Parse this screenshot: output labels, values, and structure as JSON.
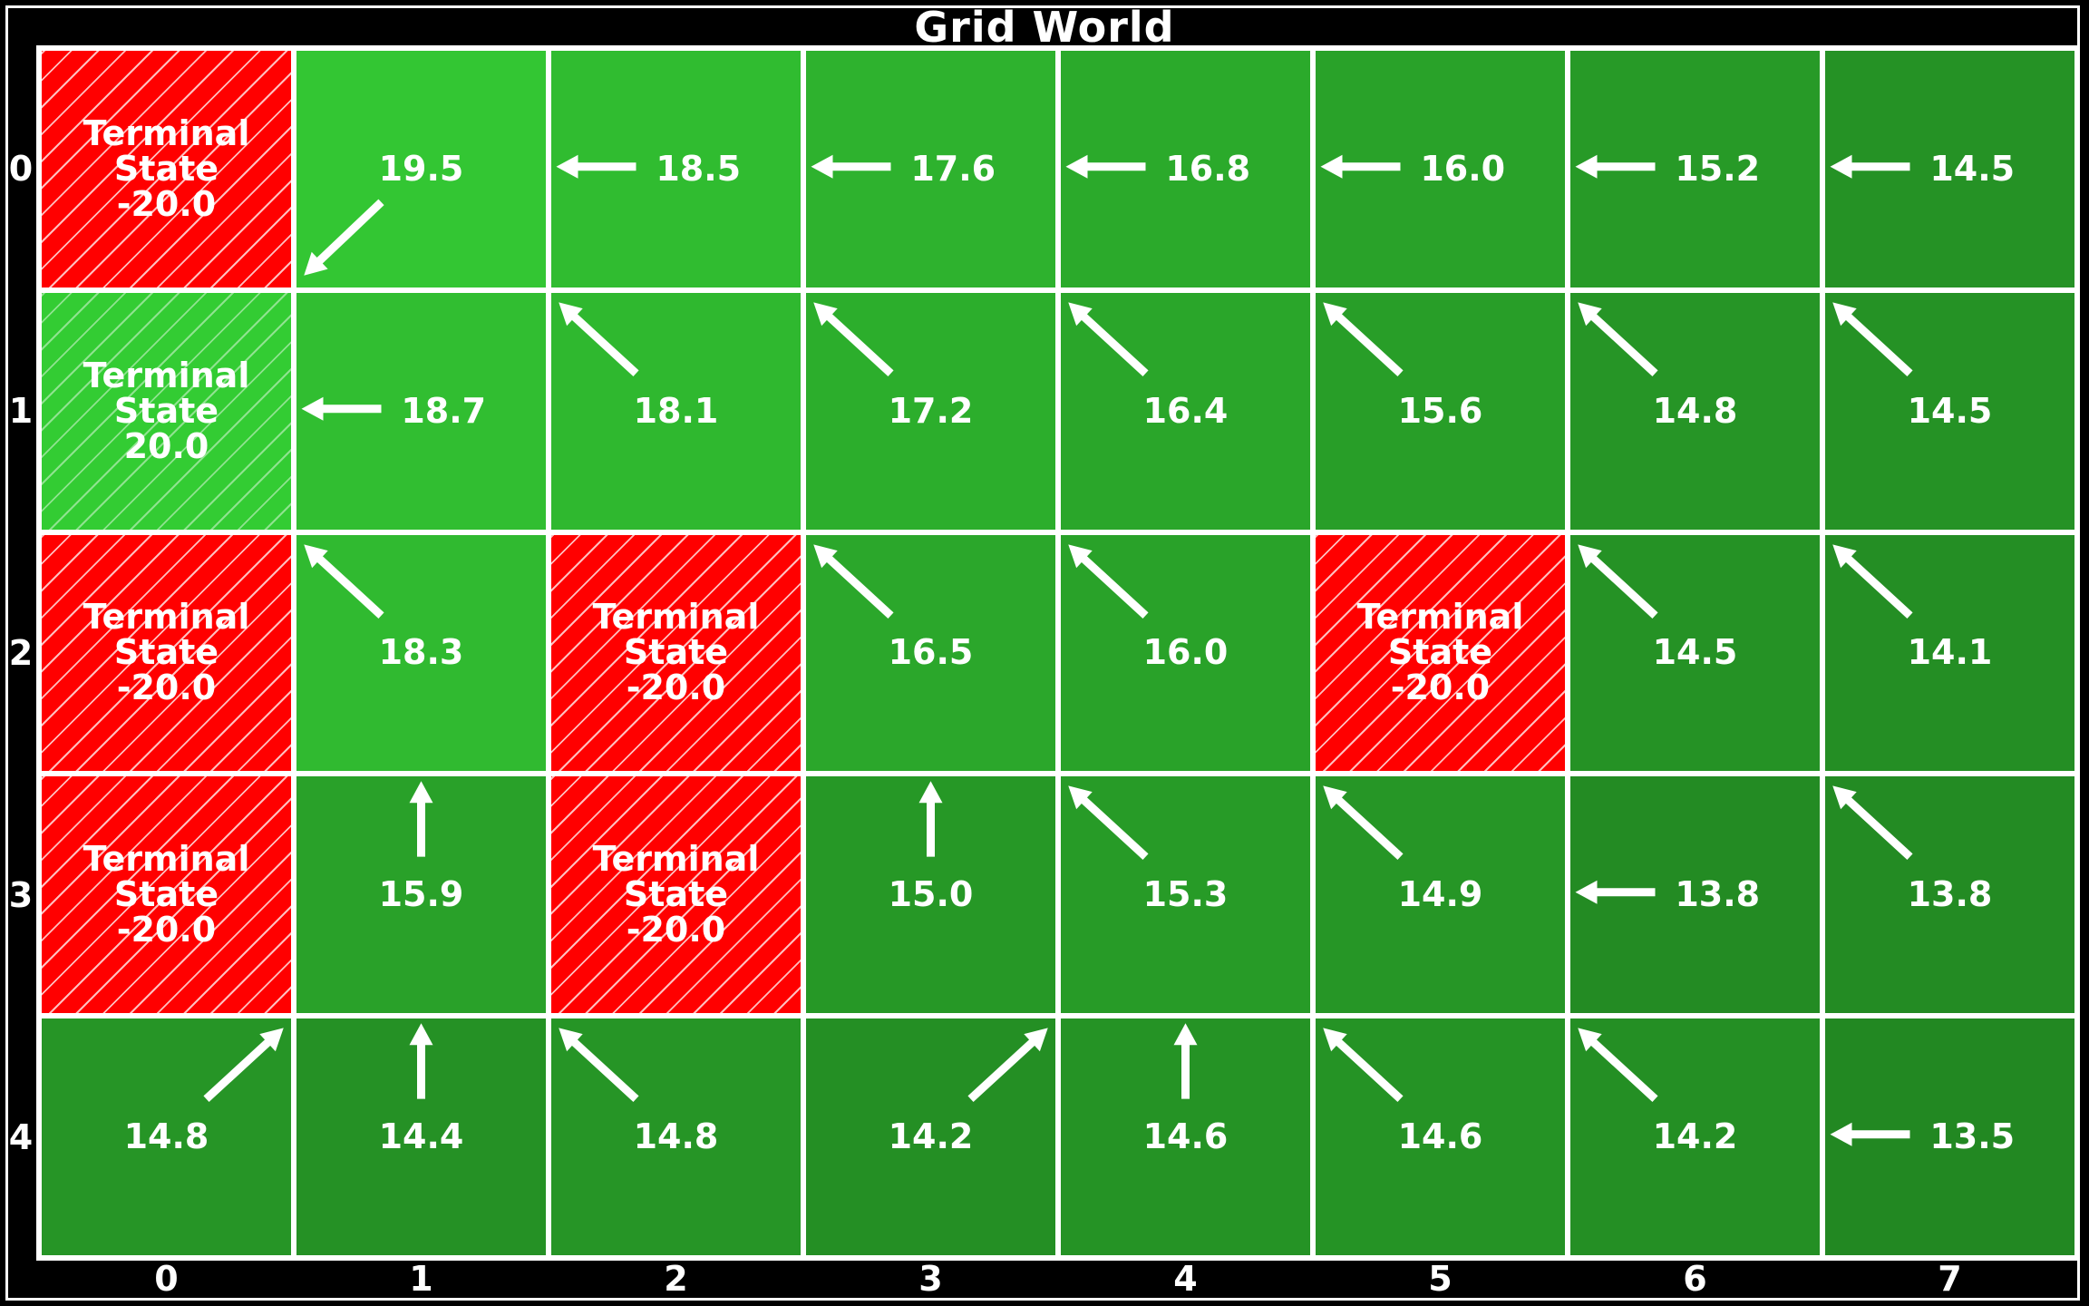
{
  "title": "Grid World",
  "colors": {
    "terminal_negative": "#ff0000",
    "terminal_positive": "#33cc33",
    "value_high": "#33c633",
    "value_low": "#228822",
    "grid_line": "#ffffff",
    "text": "#ffffff",
    "background": "#000000"
  },
  "x_ticks": [
    "0",
    "1",
    "2",
    "3",
    "4",
    "5",
    "6",
    "7"
  ],
  "y_ticks": [
    "0",
    "1",
    "2",
    "3",
    "4"
  ],
  "terminal_label": "Terminal\nState",
  "value_range": [
    13.5,
    19.5
  ],
  "cells": [
    [
      {
        "type": "terminal",
        "reward": "-20.0"
      },
      {
        "value": "19.5",
        "arrow": "down-left"
      },
      {
        "value": "18.5",
        "arrow": "left"
      },
      {
        "value": "17.6",
        "arrow": "left"
      },
      {
        "value": "16.8",
        "arrow": "left"
      },
      {
        "value": "16.0",
        "arrow": "left"
      },
      {
        "value": "15.2",
        "arrow": "left"
      },
      {
        "value": "14.5",
        "arrow": "left"
      }
    ],
    [
      {
        "type": "terminal",
        "reward": "20.0"
      },
      {
        "value": "18.7",
        "arrow": "left"
      },
      {
        "value": "18.1",
        "arrow": "up-left"
      },
      {
        "value": "17.2",
        "arrow": "up-left"
      },
      {
        "value": "16.4",
        "arrow": "up-left"
      },
      {
        "value": "15.6",
        "arrow": "up-left"
      },
      {
        "value": "14.8",
        "arrow": "up-left"
      },
      {
        "value": "14.5",
        "arrow": "up-left"
      }
    ],
    [
      {
        "type": "terminal",
        "reward": "-20.0"
      },
      {
        "value": "18.3",
        "arrow": "up-left"
      },
      {
        "type": "terminal",
        "reward": "-20.0"
      },
      {
        "value": "16.5",
        "arrow": "up-left"
      },
      {
        "value": "16.0",
        "arrow": "up-left"
      },
      {
        "type": "terminal",
        "reward": "-20.0"
      },
      {
        "value": "14.5",
        "arrow": "up-left"
      },
      {
        "value": "14.1",
        "arrow": "up-left"
      }
    ],
    [
      {
        "type": "terminal",
        "reward": "-20.0"
      },
      {
        "value": "15.9",
        "arrow": "up"
      },
      {
        "type": "terminal",
        "reward": "-20.0"
      },
      {
        "value": "15.0",
        "arrow": "up"
      },
      {
        "value": "15.3",
        "arrow": "up-left"
      },
      {
        "value": "14.9",
        "arrow": "up-left"
      },
      {
        "value": "13.8",
        "arrow": "left"
      },
      {
        "value": "13.8",
        "arrow": "up-left"
      }
    ],
    [
      {
        "value": "14.8",
        "arrow": "up-right"
      },
      {
        "value": "14.4",
        "arrow": "up"
      },
      {
        "value": "14.8",
        "arrow": "up-left"
      },
      {
        "value": "14.2",
        "arrow": "up-right"
      },
      {
        "value": "14.6",
        "arrow": "up"
      },
      {
        "value": "14.6",
        "arrow": "up-left"
      },
      {
        "value": "14.2",
        "arrow": "up-left"
      },
      {
        "value": "13.5",
        "arrow": "left"
      }
    ]
  ]
}
